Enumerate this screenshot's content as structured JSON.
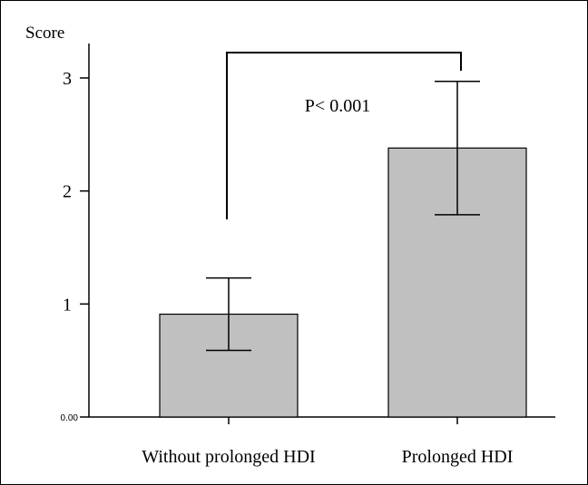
{
  "chart_data": {
    "type": "bar",
    "ylabel": "Score",
    "ylim": [
      0,
      3.2
    ],
    "yticks": [
      {
        "value": 0,
        "label": "0.00"
      },
      {
        "value": 1,
        "label": "1"
      },
      {
        "value": 2,
        "label": "2"
      },
      {
        "value": 3,
        "label": "3"
      }
    ],
    "categories": [
      "Without prolonged HDI",
      "Prolonged HDI"
    ],
    "values": [
      0.91,
      2.38
    ],
    "error_low": [
      0.59,
      1.79
    ],
    "error_high": [
      1.23,
      2.97
    ],
    "annotation": "P< 0.001",
    "grid": false,
    "bar_color": "#c0c0c0",
    "line_color": "#000000"
  }
}
